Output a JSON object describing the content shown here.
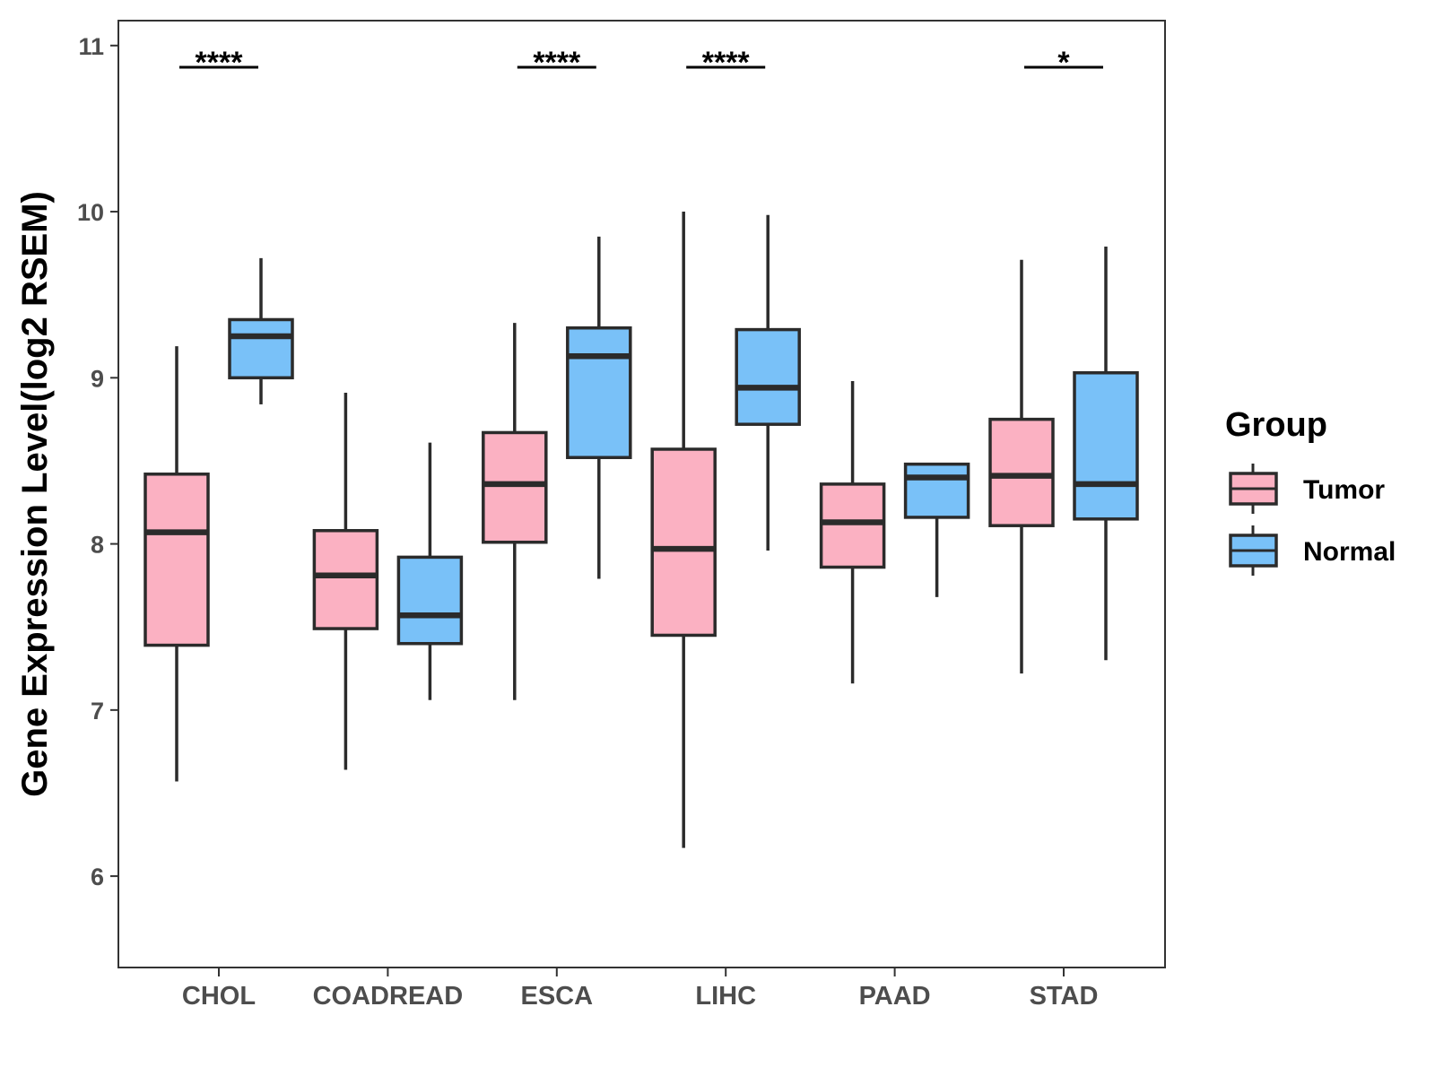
{
  "chart_data": {
    "type": "boxplot",
    "title": "",
    "xlabel": "",
    "ylabel": "Gene Expression Level(log2 RSEM)",
    "ylim": [
      5.45,
      11.15
    ],
    "yticks": [
      6,
      7,
      8,
      9,
      10,
      11
    ],
    "grid": false,
    "legend": {
      "title": "Group",
      "placement": "right",
      "entries": [
        "Tumor",
        "Normal"
      ]
    },
    "categories": [
      "CHOL",
      "COADREAD",
      "ESCA",
      "LIHC",
      "PAAD",
      "STAD"
    ],
    "series": [
      {
        "name": "Tumor",
        "color": "#FBB1C2",
        "boxes": [
          {
            "min": 6.57,
            "q1": 7.39,
            "median": 8.07,
            "q3": 8.42,
            "max": 9.19
          },
          {
            "min": 6.64,
            "q1": 7.49,
            "median": 7.81,
            "q3": 8.08,
            "max": 8.91
          },
          {
            "min": 7.06,
            "q1": 8.01,
            "median": 8.36,
            "q3": 8.67,
            "max": 9.33
          },
          {
            "min": 6.17,
            "q1": 7.45,
            "median": 7.97,
            "q3": 8.57,
            "max": 10.0
          },
          {
            "min": 7.16,
            "q1": 7.86,
            "median": 8.13,
            "q3": 8.36,
            "max": 8.98
          },
          {
            "min": 7.22,
            "q1": 8.11,
            "median": 8.41,
            "q3": 8.75,
            "max": 9.71
          }
        ]
      },
      {
        "name": "Normal",
        "color": "#79C1F8",
        "boxes": [
          {
            "min": 8.84,
            "q1": 9.0,
            "median": 9.25,
            "q3": 9.35,
            "max": 9.72
          },
          {
            "min": 7.06,
            "q1": 7.4,
            "median": 7.57,
            "q3": 7.92,
            "max": 8.61
          },
          {
            "min": 7.79,
            "q1": 8.52,
            "median": 9.13,
            "q3": 9.3,
            "max": 9.85
          },
          {
            "min": 7.96,
            "q1": 8.72,
            "median": 8.94,
            "q3": 9.29,
            "max": 9.98
          },
          {
            "min": 7.68,
            "q1": 8.16,
            "median": 8.4,
            "q3": 8.48,
            "max": 8.48
          },
          {
            "min": 7.3,
            "q1": 8.15,
            "median": 8.36,
            "q3": 9.03,
            "max": 9.79
          }
        ]
      }
    ],
    "significance": [
      {
        "category": "CHOL",
        "label": "****"
      },
      {
        "category": "COADREAD",
        "label": ""
      },
      {
        "category": "ESCA",
        "label": "****"
      },
      {
        "category": "LIHC",
        "label": "****"
      },
      {
        "category": "PAAD",
        "label": ""
      },
      {
        "category": "STAD",
        "label": "*"
      }
    ]
  }
}
